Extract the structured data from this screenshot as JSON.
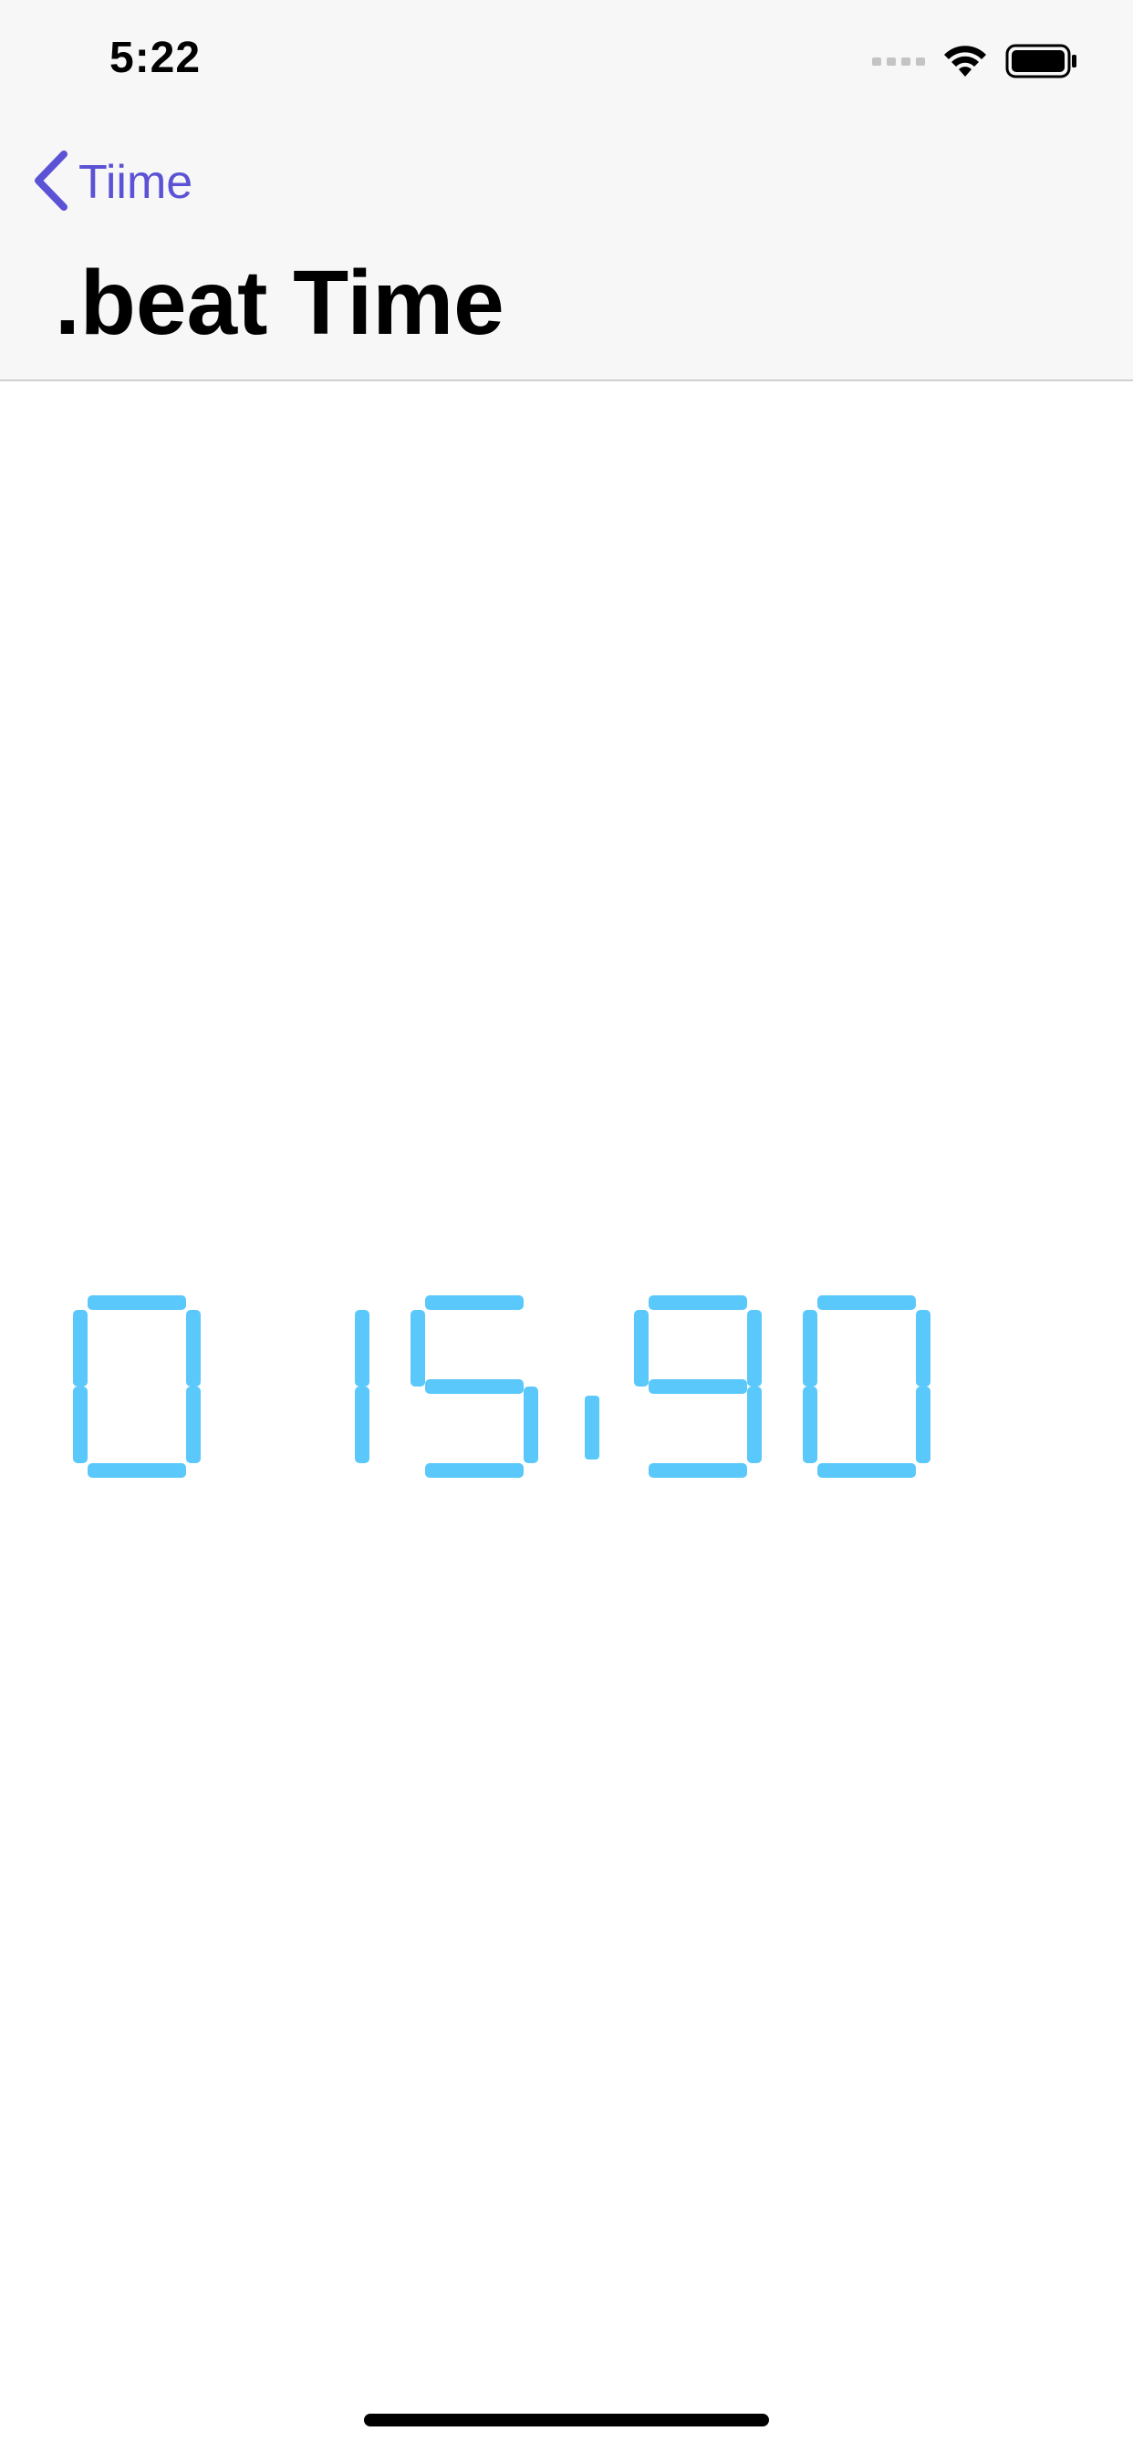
{
  "status_bar": {
    "time": "5:22",
    "icons": [
      "signal-dots-icon",
      "wifi-icon",
      "battery-icon"
    ]
  },
  "nav": {
    "back_label": "Tiime",
    "back_icon": "chevron-left-icon",
    "title": ".beat Time"
  },
  "display": {
    "value": "015.90",
    "segment_color": "#5ac8fa",
    "style": "segmented-led"
  },
  "colors": {
    "accent": "#5b52d6",
    "bar_background": "#f7f7f7"
  }
}
